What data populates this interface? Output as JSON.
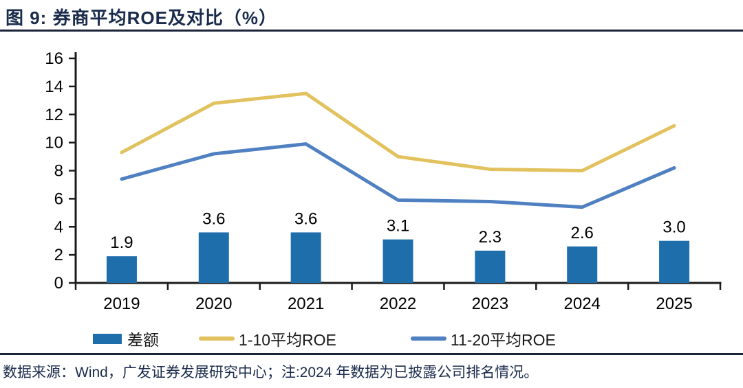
{
  "header": {
    "figure_label": "图 9:",
    "title": "图 9: 券商平均ROE及对比（%）"
  },
  "colors": {
    "navy_text": "#1a2b4c",
    "rule_line": "#1b2338",
    "bar_blue": "#1f6eac",
    "line_yellow": "#e2c25e",
    "line_blue": "#4f80c1",
    "axis_black": "#1a1a1a"
  },
  "chart_data": {
    "type": "bar",
    "subtype": "bar-line-combo",
    "title": "券商平均ROE及对比（%）",
    "categories": [
      "2019",
      "2020",
      "2021",
      "2022",
      "2023",
      "2024",
      "2025"
    ],
    "series": [
      {
        "name": "差额",
        "type": "bar",
        "color": "#1f6eac",
        "values": [
          1.9,
          3.6,
          3.6,
          3.1,
          2.3,
          2.6,
          3.0
        ],
        "data_labels": [
          "1.9",
          "3.6",
          "3.6",
          "3.1",
          "2.3",
          "2.6",
          "3.0"
        ]
      },
      {
        "name": "1-10平均ROE",
        "type": "line",
        "color": "#e2c25e",
        "values": [
          9.3,
          12.8,
          13.5,
          9.0,
          8.1,
          8.0,
          11.2
        ]
      },
      {
        "name": "11-20平均ROE",
        "type": "line",
        "color": "#4f80c1",
        "values": [
          7.4,
          9.2,
          9.9,
          5.9,
          5.8,
          5.4,
          8.2
        ]
      }
    ],
    "xlabel": "",
    "ylabel": "",
    "ylim": [
      0,
      16
    ],
    "ytick_step": 2,
    "ytick_labels": [
      "0",
      "2",
      "4",
      "6",
      "8",
      "10",
      "12",
      "14",
      "16"
    ],
    "grid": false,
    "legend_position": "bottom"
  },
  "legend": {
    "items": [
      {
        "label": "差额",
        "swatch": "bar-swatch"
      },
      {
        "label": "1-10平均ROE",
        "swatch": "line-swatch"
      },
      {
        "label": "11-20平均ROE",
        "swatch": "line-swatch"
      }
    ]
  },
  "footer": {
    "source_note": "数据来源：Wind，广发证券发展研究中心；注:2024 年数据为已披露公司排名情况。"
  }
}
